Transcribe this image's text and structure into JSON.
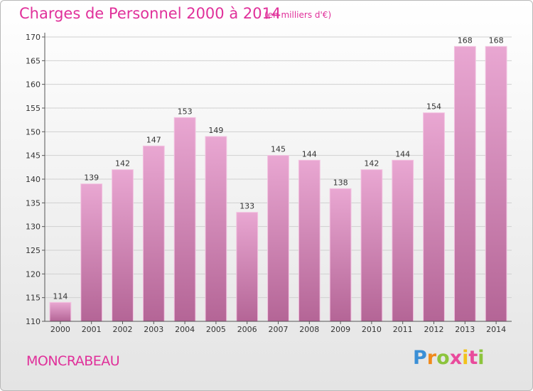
{
  "header": {
    "title": "Charges de Personnel 2000 à 2014",
    "subtitle": "(en milliers d'€)"
  },
  "footer": {
    "place": "MONCRABEAU",
    "logo": [
      "P",
      "r",
      "o",
      "x",
      "i",
      "t",
      "i"
    ]
  },
  "colors": {
    "title": "#e0309a",
    "bar_top": "#e9a7d2",
    "bar_bottom": "#b46596",
    "grid": "#d0d0d0"
  },
  "chart_data": {
    "type": "bar",
    "title": "Charges de Personnel 2000 à 2014",
    "subtitle": "(en milliers d'€)",
    "categories": [
      "2000",
      "2001",
      "2002",
      "2003",
      "2004",
      "2005",
      "2006",
      "2007",
      "2008",
      "2009",
      "2010",
      "2011",
      "2012",
      "2013",
      "2014"
    ],
    "values": [
      114,
      139,
      142,
      147,
      153,
      149,
      133,
      145,
      144,
      138,
      142,
      144,
      154,
      168,
      168
    ],
    "ylim": [
      110,
      170
    ],
    "yticks": [
      110,
      115,
      120,
      125,
      130,
      135,
      140,
      145,
      150,
      155,
      160,
      165,
      170
    ],
    "grid": true,
    "xlabel": "",
    "ylabel": ""
  }
}
